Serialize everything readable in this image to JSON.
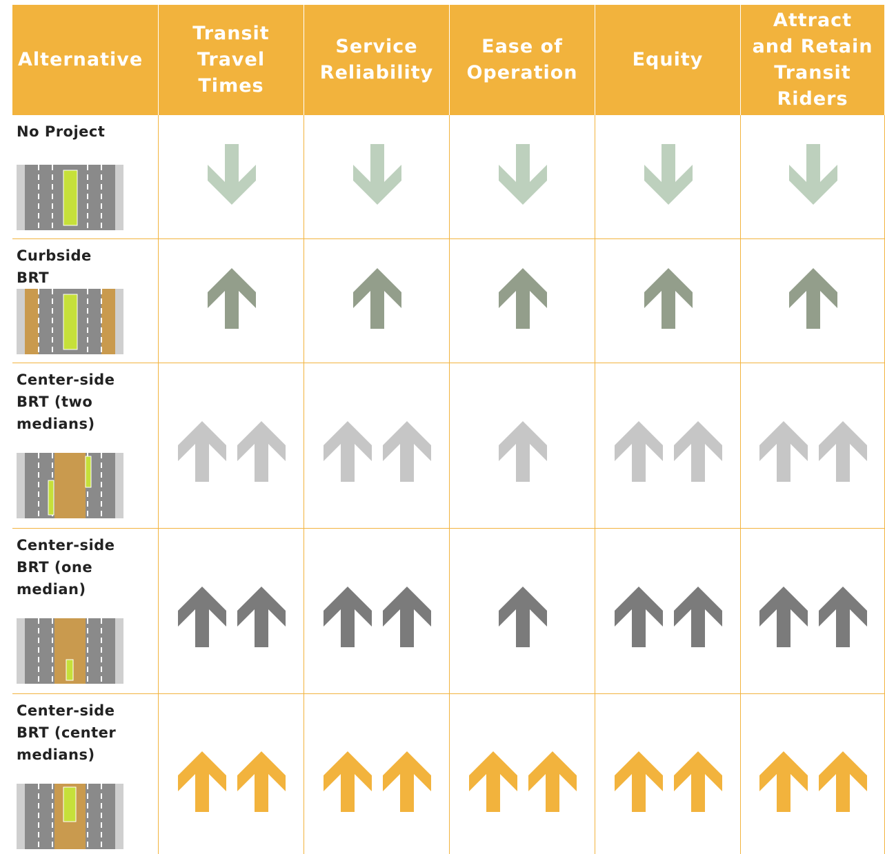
{
  "table": {
    "header": [
      "Alternative",
      "Transit Travel Times",
      "Service Reliability",
      "Ease of Operation",
      "Equity",
      "Attract and Retain Transit Riders"
    ],
    "rows": [
      {
        "label": "No Project",
        "ratings": [
          -1,
          -1,
          -1,
          -1,
          -1
        ],
        "color": "#bdd0bd"
      },
      {
        "label": "Curbside BRT",
        "ratings": [
          1,
          1,
          1,
          1,
          1
        ],
        "color": "#939e8b"
      },
      {
        "label": "Center-side BRT (two medians)",
        "ratings": [
          2,
          2,
          1,
          2,
          2
        ],
        "color": "#c6c6c6"
      },
      {
        "label": "Center-side BRT (one median)",
        "ratings": [
          2,
          2,
          1,
          2,
          2
        ],
        "color": "#7b7b7b"
      },
      {
        "label": "Center-side BRT (center medians)",
        "ratings": [
          2,
          2,
          2,
          2,
          2
        ],
        "color": "#f2b33d"
      }
    ]
  }
}
